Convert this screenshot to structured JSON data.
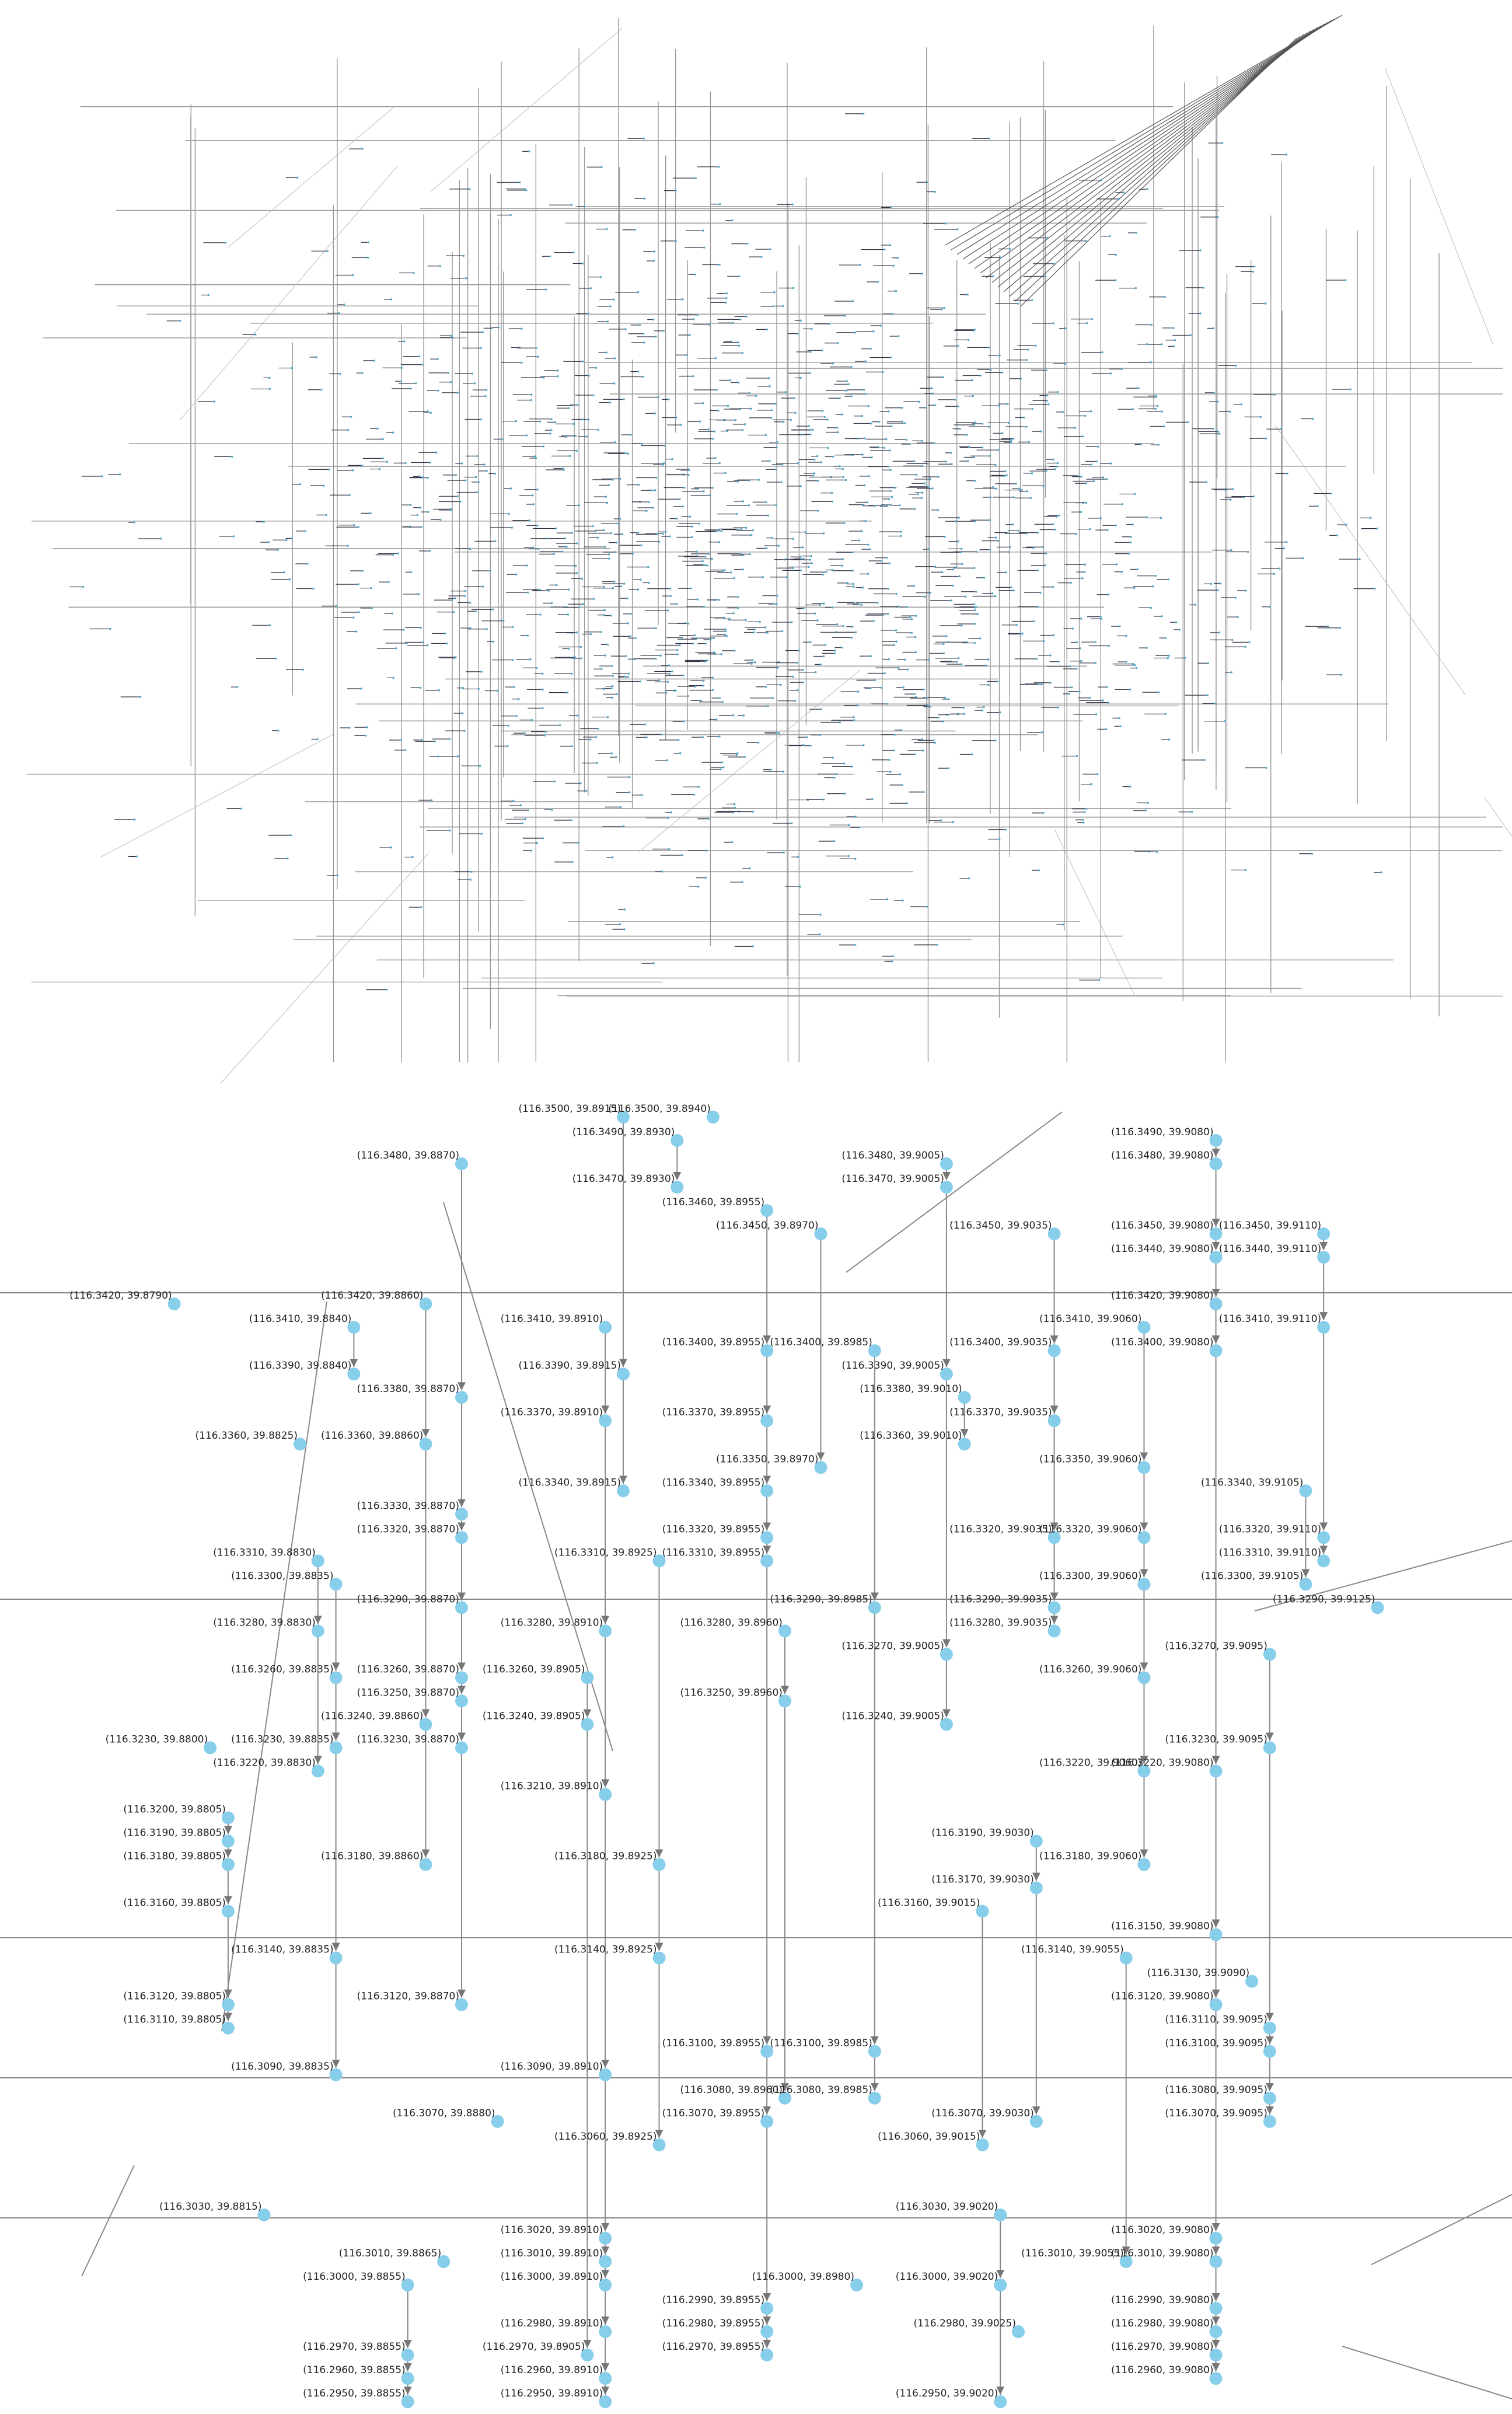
{
  "nodes": [
    "(116.3500, 39.8915)",
    "(116.3500, 39.8940)",
    "(116.3490, 39.8930)",
    "(116.3480, 39.8870)",
    "(116.3480, 39.9005)",
    "(116.3490, 39.9080)",
    "(116.3480, 39.9080)",
    "(116.3470, 39.8930)",
    "(116.3470, 39.9005)",
    "(116.3460, 39.8955)",
    "(116.3450, 39.8970)",
    "(116.3450, 39.9035)",
    "(116.3450, 39.9080)",
    "(116.3450, 39.9110)",
    "(116.3440, 39.9080)",
    "(116.3440, 39.9110)",
    "(116.3420, 39.8790)",
    "(116.3420, 39.8860)",
    "(116.3420, 39.9080)",
    "(116.3410, 39.8840)",
    "(116.3410, 39.8910)",
    "(116.3410, 39.9060)",
    "(116.3410, 39.9110)",
    "(116.3400, 39.8955)",
    "(116.3400, 39.8985)",
    "(116.3400, 39.9035)",
    "(116.3400, 39.9080)",
    "(116.3390, 39.8840)",
    "(116.3390, 39.8915)",
    "(116.3390, 39.9005)",
    "(116.3380, 39.8870)",
    "(116.3380, 39.9010)",
    "(116.3370, 39.8910)",
    "(116.3370, 39.8955)",
    "(116.3370, 39.9035)",
    "(116.3360, 39.8825)",
    "(116.3360, 39.8860)",
    "(116.3360, 39.9010)",
    "(116.3350, 39.8970)",
    "(116.3350, 39.9060)",
    "(116.3340, 39.8915)",
    "(116.3340, 39.8955)",
    "(116.3340, 39.9105)",
    "(116.3330, 39.8870)",
    "(116.3320, 39.8870)",
    "(116.3320, 39.8955)",
    "(116.3320, 39.9035)",
    "(116.3320, 39.9060)",
    "(116.3320, 39.9110)",
    "(116.3310, 39.8830)",
    "(116.3310, 39.8925)",
    "(116.3310, 39.8955)",
    "(116.3310, 39.9110)",
    "(116.3300, 39.8835)",
    "(116.3300, 39.9060)",
    "(116.3300, 39.9105)",
    "(116.3290, 39.8870)",
    "(116.3290, 39.8985)",
    "(116.3290, 39.9035)",
    "(116.3290, 39.9125)",
    "(116.3280, 39.8830)",
    "(116.3280, 39.8910)",
    "(116.3280, 39.8960)",
    "(116.3280, 39.9035)",
    "(116.3270, 39.9005)",
    "(116.3270, 39.9095)",
    "(116.3260, 39.8835)",
    "(116.3260, 39.8870)",
    "(116.3260, 39.8905)",
    "(116.3260, 39.9060)",
    "(116.3250, 39.8870)",
    "(116.3250, 39.8960)",
    "(116.3240, 39.8860)",
    "(116.3240, 39.8905)",
    "(116.3240, 39.9005)",
    "(116.3230, 39.8800)",
    "(116.3230, 39.8835)",
    "(116.3230, 39.8870)",
    "(116.3230, 39.9095)",
    "(116.3220, 39.8830)",
    "(116.3220, 39.9060)",
    "(116.3220, 39.9080)",
    "(116.3210, 39.8910)",
    "(116.3200, 39.8805)",
    "(116.3190, 39.8805)",
    "(116.3190, 39.9030)",
    "(116.3180, 39.8805)",
    "(116.3180, 39.8860)",
    "(116.3180, 39.8925)",
    "(116.3180, 39.9060)",
    "(116.3170, 39.9030)",
    "(116.3160, 39.8805)",
    "(116.3160, 39.9015)",
    "(116.3150, 39.9080)",
    "(116.3140, 39.8835)",
    "(116.3140, 39.8925)",
    "(116.3140, 39.9055)",
    "(116.3130, 39.9090)",
    "(116.3120, 39.8805)",
    "(116.3120, 39.8870)",
    "(116.3120, 39.9080)",
    "(116.3110, 39.8805)",
    "(116.3110, 39.9095)",
    "(116.3100, 39.8955)",
    "(116.3100, 39.8985)",
    "(116.3100, 39.9095)",
    "(116.3090, 39.8835)",
    "(116.3090, 39.8910)",
    "(116.3080, 39.8960)",
    "(116.3080, 39.8985)",
    "(116.3080, 39.9095)",
    "(116.3070, 39.8880)",
    "(116.3070, 39.8955)",
    "(116.3070, 39.9030)",
    "(116.3070, 39.9095)",
    "(116.3060, 39.8925)",
    "(116.3060, 39.9015)",
    "(116.3030, 39.8815)",
    "(116.3030, 39.9020)",
    "(116.3020, 39.8910)",
    "(116.3020, 39.9080)",
    "(116.3010, 39.8865)",
    "(116.3010, 39.8910)",
    "(116.3010, 39.9055)",
    "(116.3010, 39.9080)",
    "(116.3000, 39.8855)",
    "(116.3000, 39.8910)",
    "(116.3000, 39.8980)",
    "(116.3000, 39.9020)",
    "(116.2990, 39.8955)",
    "(116.2990, 39.9080)",
    "(116.2980, 39.8910)",
    "(116.2980, 39.8955)",
    "(116.2980, 39.9025)",
    "(116.2980, 39.9080)",
    "(116.2970, 39.8855)",
    "(116.2970, 39.8905)",
    "(116.2970, 39.8955)",
    "(116.2970, 39.9080)",
    "(116.2960, 39.8855)",
    "(116.2960, 39.8910)",
    "(116.2960, 39.9080)",
    "(116.2950, 39.8855)",
    "(116.2950, 39.8910)",
    "(116.2950, 39.9020)"
  ]
}
